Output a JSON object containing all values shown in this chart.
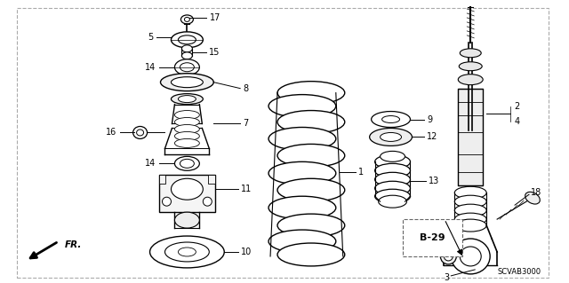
{
  "bg_color": "#ffffff",
  "line_color": "#000000",
  "text_color": "#000000",
  "diagram_code": "SCVAB3000",
  "fig_width": 6.4,
  "fig_height": 3.19,
  "dpi": 100
}
